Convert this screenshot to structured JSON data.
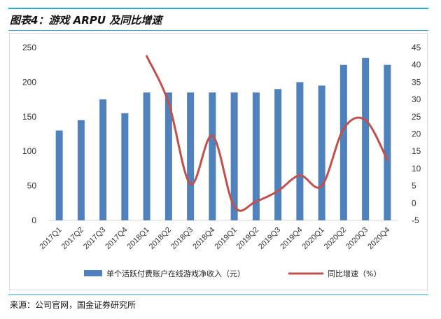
{
  "figure": {
    "title": "图表4：游戏 ARPU 及同比增速",
    "source": "来源：公司官网，国金证券研究所"
  },
  "colors": {
    "accent_rule": "#2aa7df",
    "bar": "#4f81bd",
    "line": "#c0504d"
  },
  "chart_data": {
    "type": "bar",
    "categories": [
      "2017Q1",
      "2017Q2",
      "2017Q3",
      "2017Q4",
      "2018Q1",
      "2018Q2",
      "2018Q3",
      "2018Q4",
      "2019Q1",
      "2019Q2",
      "2019Q3",
      "2019Q4",
      "2020Q1",
      "2020Q2",
      "2020Q3",
      "2020Q4"
    ],
    "series": [
      {
        "name": "单个活跃付费账户在线游戏净收入（元）",
        "type": "bar",
        "axis": "left",
        "values": [
          130,
          145,
          175,
          155,
          185,
          185,
          185,
          185,
          185,
          185,
          190,
          200,
          195,
          225,
          235,
          225
        ]
      },
      {
        "name": "同比增速（%）",
        "type": "line",
        "axis": "right",
        "smooth": true,
        "values": [
          null,
          null,
          null,
          null,
          42.5,
          29,
          5.5,
          19.5,
          -1,
          0.5,
          3.5,
          8,
          5,
          21.5,
          24,
          12.5
        ]
      }
    ],
    "left_axis": {
      "ylim": [
        0,
        250
      ],
      "ticks": [
        0,
        50,
        100,
        150,
        200,
        250
      ]
    },
    "right_axis": {
      "ylim": [
        -5,
        45
      ],
      "ticks": [
        -5,
        0,
        5,
        10,
        15,
        20,
        25,
        30,
        35,
        40,
        45
      ]
    },
    "grid": false,
    "legend_position": "bottom"
  }
}
